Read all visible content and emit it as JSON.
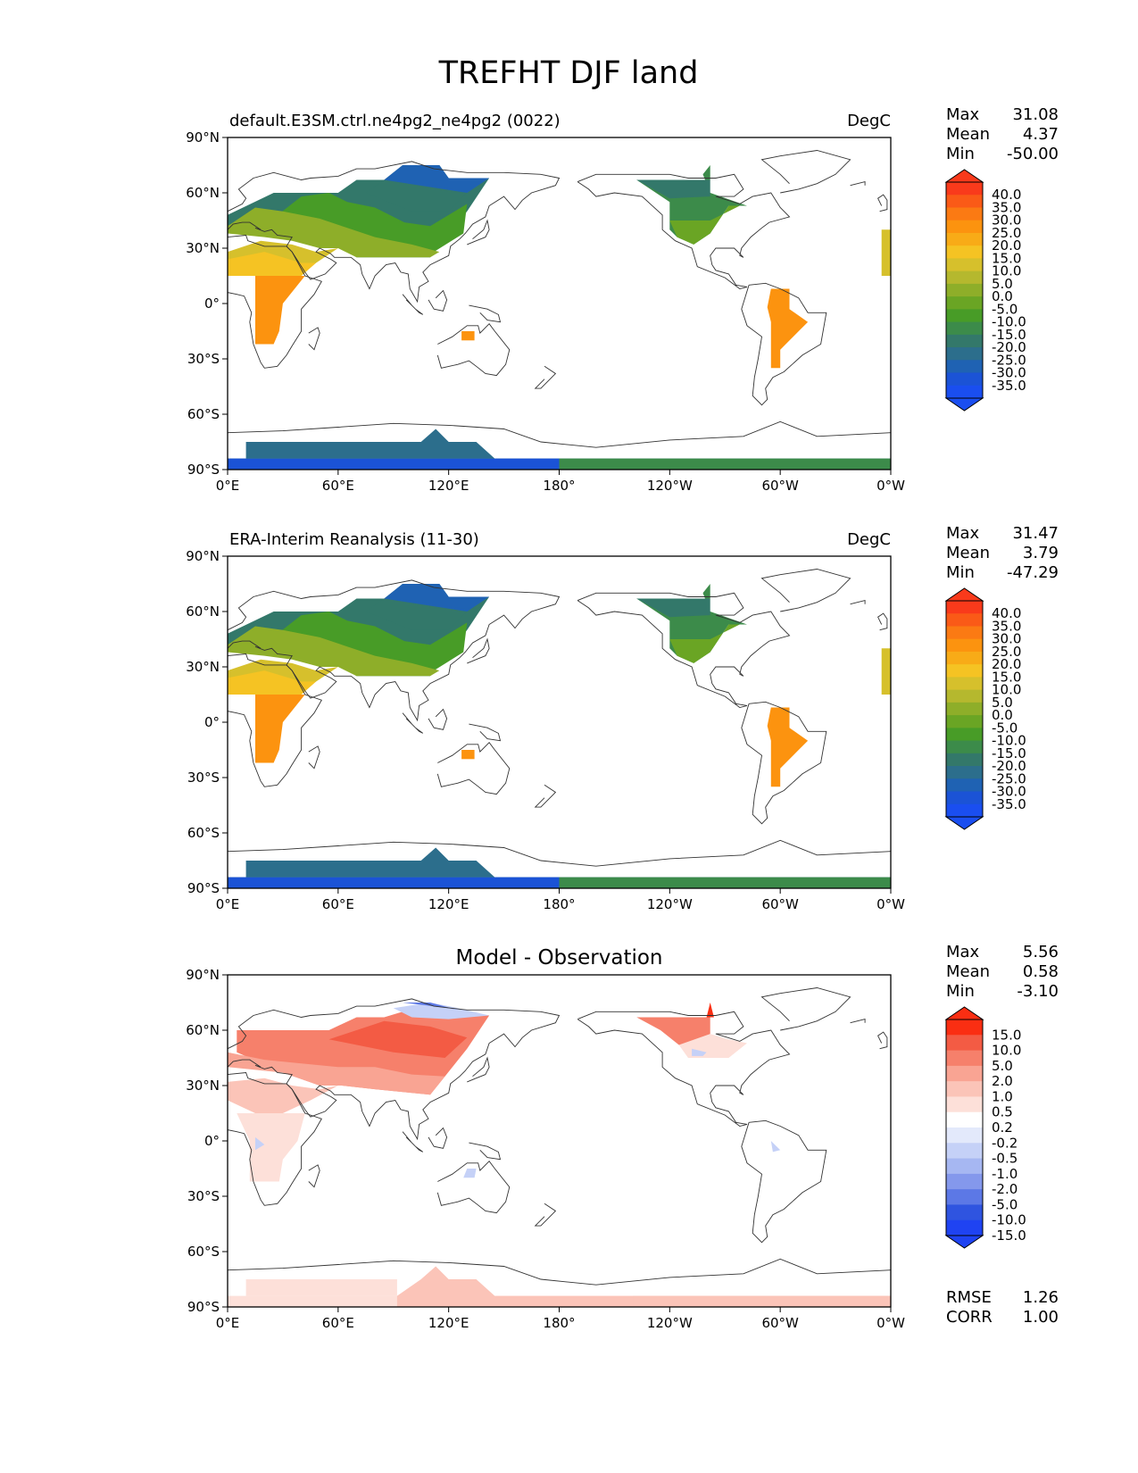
{
  "figure": {
    "title": "TREFHT DJF land"
  },
  "axes": {
    "lat_ticks": [
      "90°N",
      "60°N",
      "30°N",
      "0°",
      "30°S",
      "60°S",
      "90°S"
    ],
    "lon_ticks": [
      "0°E",
      "60°E",
      "120°E",
      "180°",
      "120°W",
      "60°W",
      "0°W"
    ]
  },
  "panels": [
    {
      "id": "model",
      "left_title": "default.E3SM.ctrl.ne4pg2_ne4pg2 (0022)",
      "center_title": "",
      "units": "DegC",
      "stats": [
        {
          "label": "Max",
          "value": "31.08"
        },
        {
          "label": "Mean",
          "value": "4.37"
        },
        {
          "label": "Min",
          "value": "-50.00"
        }
      ],
      "colorbar_labels": [
        "40.0",
        "35.0",
        "30.0",
        "25.0",
        "20.0",
        "15.0",
        "10.0",
        "5.0",
        "0.0",
        "-5.0",
        "-10.0",
        "-15.0",
        "-20.0",
        "-25.0",
        "-30.0",
        "-35.0"
      ]
    },
    {
      "id": "obs",
      "left_title": "ERA-Interim Reanalysis (11-30)",
      "center_title": "",
      "units": "DegC",
      "stats": [
        {
          "label": "Max",
          "value": "31.47"
        },
        {
          "label": "Mean",
          "value": "3.79"
        },
        {
          "label": "Min",
          "value": "-47.29"
        }
      ],
      "colorbar_labels": [
        "40.0",
        "35.0",
        "30.0",
        "25.0",
        "20.0",
        "15.0",
        "10.0",
        "5.0",
        "0.0",
        "-5.0",
        "-10.0",
        "-15.0",
        "-20.0",
        "-25.0",
        "-30.0",
        "-35.0"
      ]
    },
    {
      "id": "diff",
      "left_title": "",
      "center_title": "Model - Observation",
      "units": "",
      "stats": [
        {
          "label": "Max",
          "value": "5.56"
        },
        {
          "label": "Mean",
          "value": "0.58"
        },
        {
          "label": "Min",
          "value": "-3.10"
        }
      ],
      "colorbar_labels": [
        "15.0",
        "10.0",
        "5.0",
        "2.0",
        "1.0",
        "0.5",
        "0.2",
        "-0.2",
        "-0.5",
        "-1.0",
        "-2.0",
        "-5.0",
        "-10.0",
        "-15.0"
      ],
      "extra_stats": [
        {
          "label": "RMSE",
          "value": "1.26"
        },
        {
          "label": "CORR",
          "value": "1.00"
        }
      ]
    }
  ],
  "colors": {
    "temp_scale": [
      "#f93a1b",
      "#fa5a17",
      "#fb7a13",
      "#fc930f",
      "#f8ab17",
      "#f5c323",
      "#d6c02c",
      "#b5b82e",
      "#8eae29",
      "#6aa524",
      "#489c27",
      "#3c8b4a",
      "#33786a",
      "#2c6e8c",
      "#1f62b3",
      "#1b53d6",
      "#1a4ef0"
    ],
    "diff_scale": [
      "#fa2e12",
      "#f35b44",
      "#f6806b",
      "#f9a493",
      "#fbc4b8",
      "#fde0d9",
      "#ffffff",
      "#e3e9fb",
      "#c5d1f7",
      "#a6b7f2",
      "#8498ec",
      "#5c78e6",
      "#2f54e0",
      "#1f43f2"
    ]
  }
}
